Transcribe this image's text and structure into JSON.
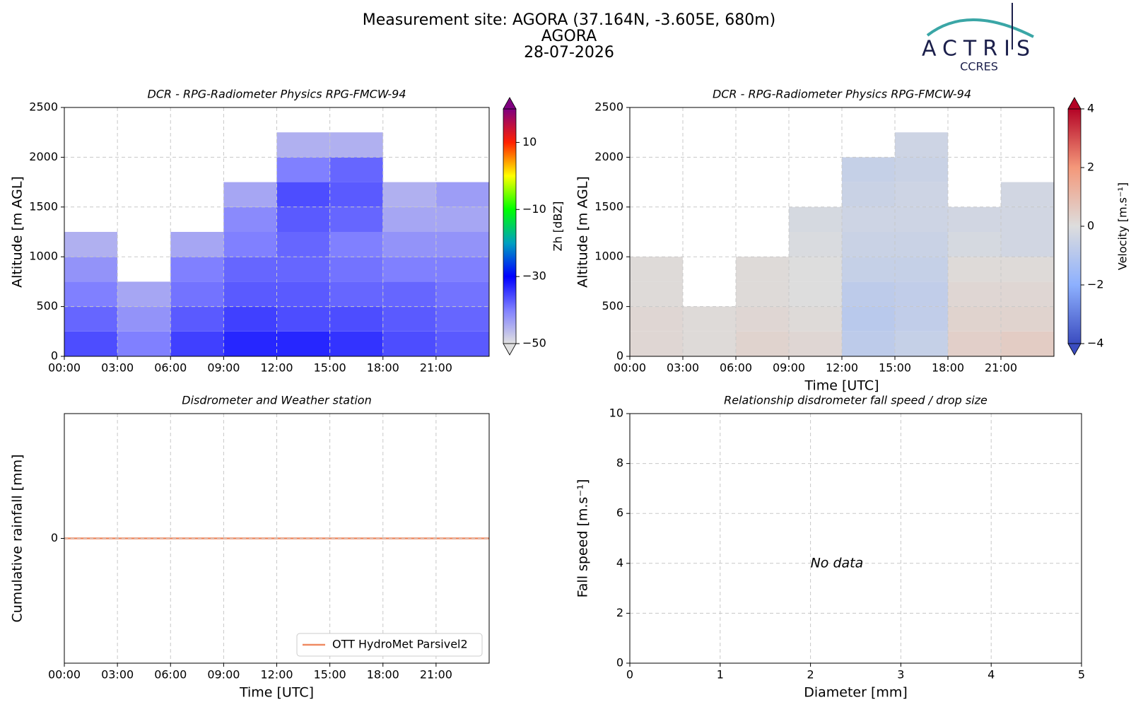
{
  "header": {
    "site": "Measurement site: AGORA (37.164N, -3.605E, 680m)",
    "station": "AGORA",
    "date": "28-07-2026"
  },
  "logo": {
    "name": "ACTRIS",
    "subtitle": "CCRES"
  },
  "chart_data": [
    {
      "type": "heatmap",
      "title": "DCR - RPG-Radiometer Physics RPG-FMCW-94",
      "ylabel": "Altitude [m AGL]",
      "x": [
        0,
        3,
        6,
        9,
        12,
        15,
        18,
        21,
        24
      ],
      "y": [
        0,
        250,
        500,
        750,
        1000,
        1250,
        1500,
        1750,
        2000,
        2250,
        2500
      ],
      "values": [
        [
          -36,
          -40,
          -35,
          -33,
          -33,
          -34,
          -36,
          -37
        ],
        [
          -38,
          -42,
          -37,
          -35,
          -36,
          -36,
          -37,
          -38
        ],
        [
          -40,
          -44,
          -39,
          -37,
          -37,
          -38,
          -38,
          -39
        ],
        [
          -42,
          null,
          -40,
          -38,
          -38,
          -39,
          -40,
          -40
        ],
        [
          -45,
          null,
          -44,
          -40,
          -38,
          -40,
          -42,
          -42
        ],
        [
          null,
          null,
          null,
          -41,
          -37,
          -38,
          -44,
          -44
        ],
        [
          null,
          null,
          null,
          -44,
          -36,
          -37,
          -45,
          -43
        ],
        [
          null,
          null,
          null,
          null,
          -40,
          -38,
          null,
          null
        ],
        [
          null,
          null,
          null,
          null,
          -45,
          -45,
          null,
          null
        ],
        [
          null,
          null,
          null,
          null,
          null,
          null,
          null,
          null
        ]
      ],
      "xlim": [
        0,
        24
      ],
      "xticks": [
        {
          "value": 0,
          "label": "00:00"
        },
        {
          "value": 3,
          "label": "03:00"
        },
        {
          "value": 6,
          "label": "06:00"
        },
        {
          "value": 9,
          "label": "09:00"
        },
        {
          "value": 12,
          "label": "12:00"
        },
        {
          "value": 15,
          "label": "15:00"
        },
        {
          "value": 18,
          "label": "18:00"
        },
        {
          "value": 21,
          "label": "21:00"
        }
      ],
      "ylim": [
        0,
        2500
      ],
      "yticks": [
        0,
        500,
        1000,
        1500,
        2000,
        2500
      ],
      "grid": true,
      "colorbar": {
        "label": "Zh [dBZ]",
        "zlim": [
          -50,
          20
        ],
        "zticks": [
          {
            "value": -50,
            "label": "−50"
          },
          {
            "value": -30,
            "label": "−30"
          },
          {
            "value": -10,
            "label": "−10"
          },
          10
        ],
        "colormap": [
          "#e0e0e0",
          "#8080ff",
          "#0000ff",
          "#00a0c0",
          "#00ff00",
          "#ffff00",
          "#ff2000",
          "#800080"
        ],
        "extend": "both"
      }
    },
    {
      "type": "heatmap",
      "title": "DCR - RPG-Radiometer Physics RPG-FMCW-94",
      "xlabel": "Time [UTC]",
      "ylabel": "Altitude [m AGL]",
      "x": [
        0,
        3,
        6,
        9,
        12,
        15,
        18,
        21,
        24
      ],
      "y": [
        0,
        250,
        500,
        750,
        1000,
        1250,
        1500,
        1750,
        2000,
        2250,
        2500
      ],
      "values": [
        [
          0.2,
          0.1,
          0.3,
          0.2,
          -0.8,
          -0.6,
          0.4,
          0.5
        ],
        [
          0.2,
          0.1,
          0.2,
          0.1,
          -0.9,
          -0.7,
          0.3,
          0.3
        ],
        [
          0.1,
          null,
          0.1,
          0,
          -0.8,
          -0.7,
          0.2,
          0.2
        ],
        [
          0.1,
          null,
          0.1,
          0,
          -0.6,
          -0.6,
          0.1,
          0.1
        ],
        [
          null,
          null,
          null,
          -0.1,
          -0.5,
          -0.5,
          -0.2,
          -0.3
        ],
        [
          null,
          null,
          null,
          -0.2,
          -0.4,
          -0.4,
          -0.3,
          -0.3
        ],
        [
          null,
          null,
          null,
          null,
          -0.5,
          -0.4,
          null,
          -0.3
        ],
        [
          null,
          null,
          null,
          null,
          -0.6,
          -0.5,
          null,
          null
        ],
        [
          null,
          null,
          null,
          null,
          null,
          -0.4,
          null,
          null
        ],
        [
          null,
          null,
          null,
          null,
          null,
          null,
          null,
          null
        ]
      ],
      "xlim": [
        0,
        24
      ],
      "xticks": [
        {
          "value": 0,
          "label": "00:00"
        },
        {
          "value": 3,
          "label": "03:00"
        },
        {
          "value": 6,
          "label": "06:00"
        },
        {
          "value": 9,
          "label": "09:00"
        },
        {
          "value": 12,
          "label": "12:00"
        },
        {
          "value": 15,
          "label": "15:00"
        },
        {
          "value": 18,
          "label": "18:00"
        },
        {
          "value": 21,
          "label": "21:00"
        }
      ],
      "ylim": [
        0,
        2500
      ],
      "yticks": [
        0,
        500,
        1000,
        1500,
        2000,
        2500
      ],
      "grid": true,
      "colorbar": {
        "label": "Velocity [m.s⁻¹]",
        "zlim": [
          -4,
          4
        ],
        "zticks": [
          {
            "value": -4,
            "label": "−4"
          },
          {
            "value": -2,
            "label": "−2"
          },
          0,
          2,
          4
        ],
        "colormap": [
          "#3b4cc0",
          "#8db0fe",
          "#dddddd",
          "#f4987a",
          "#b40426"
        ],
        "extend": "both"
      }
    },
    {
      "type": "line",
      "title": "Disdrometer and Weather station",
      "xlabel": "Time [UTC]",
      "ylabel": "Cumulative rainfall [mm]",
      "x": [
        0,
        24
      ],
      "series": [
        {
          "name": "OTT HydroMet Parsivel2",
          "color": "#ef8a62",
          "values": [
            0,
            0
          ]
        }
      ],
      "xlim": [
        0,
        24
      ],
      "xticks": [
        {
          "value": 0,
          "label": "00:00"
        },
        {
          "value": 3,
          "label": "03:00"
        },
        {
          "value": 6,
          "label": "06:00"
        },
        {
          "value": 9,
          "label": "09:00"
        },
        {
          "value": 12,
          "label": "12:00"
        },
        {
          "value": 15,
          "label": "15:00"
        },
        {
          "value": 18,
          "label": "18:00"
        },
        {
          "value": 21,
          "label": "21:00"
        }
      ],
      "ylim": [
        -1,
        1
      ],
      "yticks": [
        0
      ],
      "grid": true,
      "legend": "lower right"
    },
    {
      "type": "scatter",
      "title": "Relationship disdrometer fall speed / drop size",
      "xlabel": "Diameter [mm]",
      "ylabel": "Fall speed [m.s⁻¹]",
      "x": [],
      "values": [],
      "xlim": [
        0,
        5
      ],
      "xticks": [
        0,
        1,
        2,
        3,
        4,
        5
      ],
      "ylim": [
        0,
        10
      ],
      "yticks": [
        0,
        2,
        4,
        6,
        8,
        10
      ],
      "grid": true,
      "annotation": "No data"
    }
  ]
}
